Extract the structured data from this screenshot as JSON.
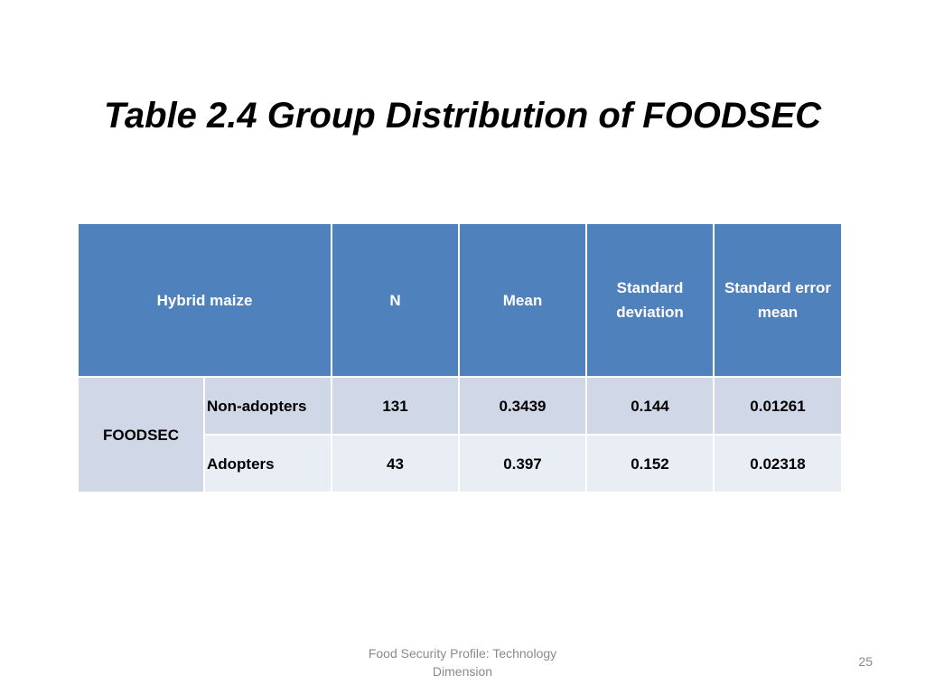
{
  "slide": {
    "title": "Table 2.4 Group Distribution of FOODSEC",
    "footer": "Food Security Profile: Technology Dimension",
    "page_number": "25"
  },
  "table": {
    "header": {
      "group": "Hybrid maize",
      "n": "N",
      "mean": "Mean",
      "std_dev": "Standard deviation",
      "std_err": "Standard error mean"
    },
    "row_group_label": "FOODSEC",
    "rows": [
      {
        "label": "Non-adopters",
        "n": "131",
        "mean": "0.3439",
        "std_dev": "0.144",
        "std_err": "0.01261"
      },
      {
        "label": "Adopters",
        "n": "43",
        "mean": "0.397",
        "std_dev": "0.152",
        "std_err": "0.02318"
      }
    ]
  },
  "colors": {
    "header_fill": "#4f81bd",
    "row_fill_dark": "#d0d8e8",
    "row_fill_light": "#e9edf4"
  }
}
